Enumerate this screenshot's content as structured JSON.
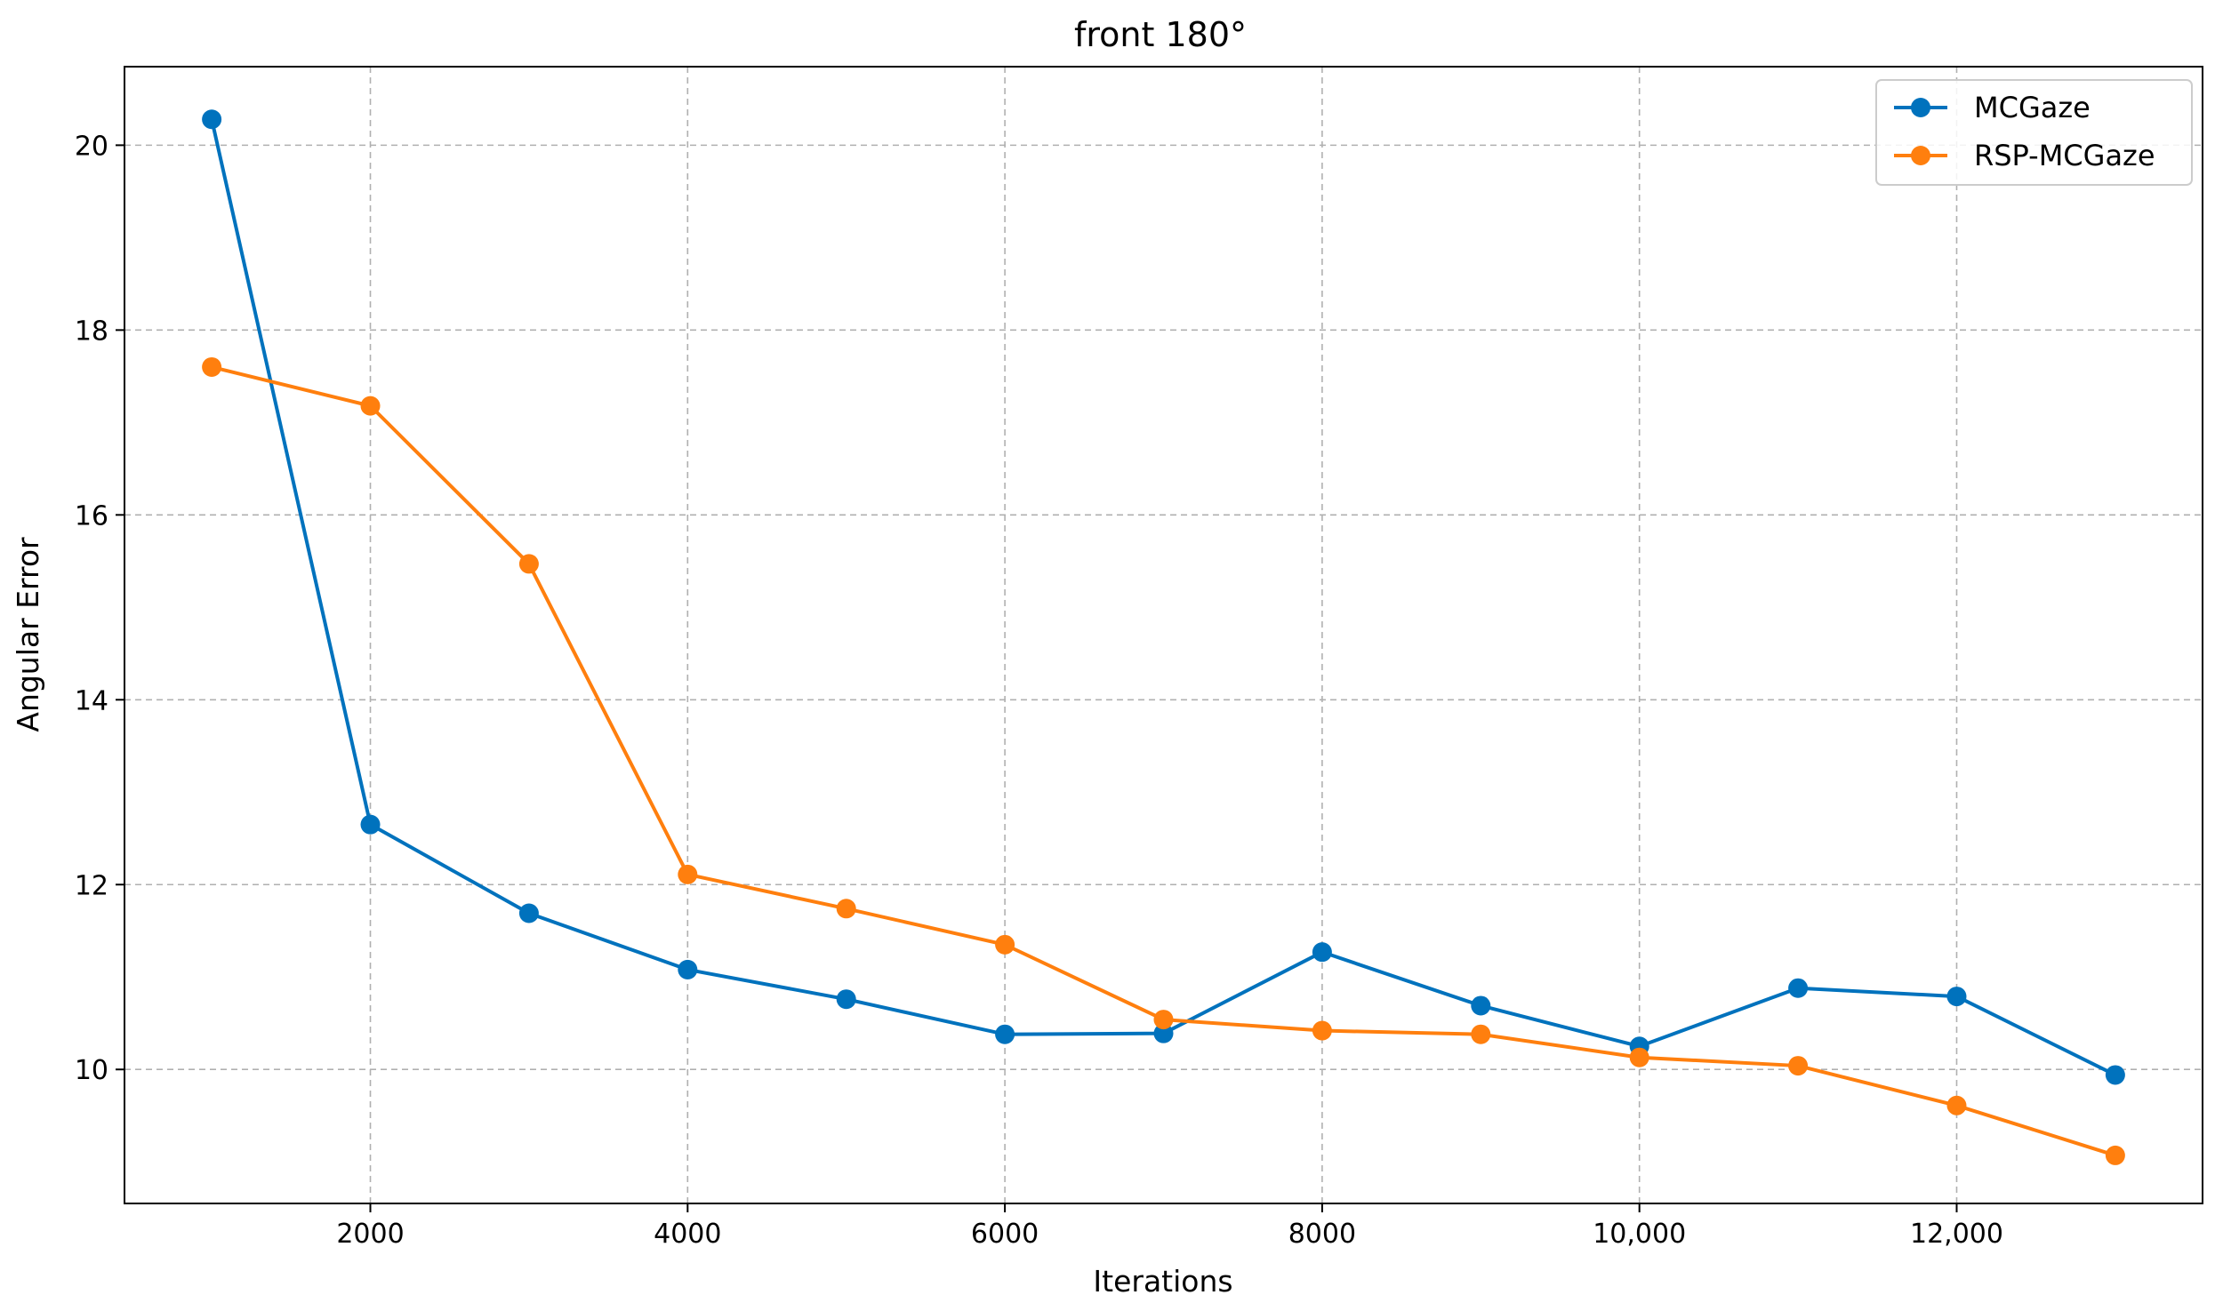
{
  "chart_data": {
    "type": "line",
    "title": "front 180°",
    "xlabel": "Iterations",
    "ylabel": "Angular Error",
    "x": [
      1000,
      2000,
      3000,
      4000,
      5000,
      6000,
      7000,
      8000,
      9000,
      10000,
      11000,
      12000,
      13000
    ],
    "xlim": [
      450,
      13550
    ],
    "ylim": [
      8.55,
      20.85
    ],
    "x_ticks": [
      2000,
      4000,
      6000,
      8000,
      10000,
      12000
    ],
    "x_tick_labels": [
      "2000",
      "4000",
      "6000",
      "8000",
      "10,000",
      "12,000"
    ],
    "y_ticks": [
      10,
      12,
      14,
      16,
      18,
      20
    ],
    "y_tick_labels": [
      "10",
      "12",
      "14",
      "16",
      "18",
      "20"
    ],
    "grid": true,
    "legend_position": "top-right",
    "series": [
      {
        "name": "MCGaze",
        "color": "#0072bd",
        "marker": "circle",
        "values": [
          20.28,
          12.65,
          11.69,
          11.08,
          10.76,
          10.38,
          10.39,
          11.27,
          10.69,
          10.25,
          10.88,
          10.79,
          9.94
        ]
      },
      {
        "name": "RSP-MCGaze",
        "color": "#ff7f0e",
        "marker": "circle",
        "values": [
          17.6,
          17.18,
          15.47,
          12.11,
          11.74,
          11.35,
          10.54,
          10.42,
          10.38,
          10.13,
          10.04,
          9.61,
          9.07
        ]
      }
    ]
  }
}
